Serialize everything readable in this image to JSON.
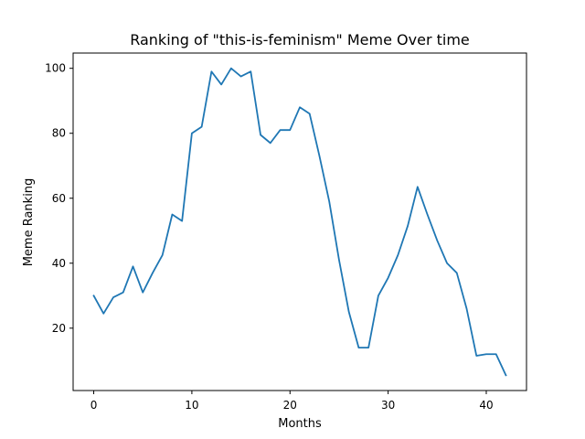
{
  "chart_data": {
    "type": "line",
    "title": "Ranking of \"this-is-feminism\" Meme Over time",
    "xlabel": "Months",
    "ylabel": "Meme Ranking",
    "xlim": [
      -2.1,
      44.1
    ],
    "ylim": [
      0.8,
      104.7
    ],
    "xticks": [
      0,
      10,
      20,
      30,
      40
    ],
    "yticks": [
      20,
      40,
      60,
      80,
      100
    ],
    "grid": false,
    "legend": false,
    "series": [
      {
        "color": "#1f77b4",
        "x": [
          0,
          1,
          2,
          3,
          4,
          5,
          6,
          7,
          8,
          9,
          10,
          11,
          12,
          13,
          14,
          15,
          16,
          17,
          18,
          19,
          20,
          21,
          22,
          23,
          24,
          25,
          26,
          27,
          28,
          29,
          30,
          31,
          32,
          33,
          34,
          35,
          36,
          37,
          38,
          39,
          40,
          41,
          42
        ],
        "y": [
          30,
          24.5,
          29.5,
          31,
          39,
          31,
          37,
          42.5,
          55,
          53,
          80,
          82,
          99,
          95,
          100,
          97.5,
          99,
          79.5,
          77,
          81,
          81,
          88,
          86,
          73,
          59,
          41,
          25,
          14,
          14,
          30,
          35.5,
          42.5,
          51.5,
          63.5,
          55,
          47,
          40,
          37,
          26,
          11.5,
          12,
          12,
          5.5
        ]
      }
    ]
  }
}
